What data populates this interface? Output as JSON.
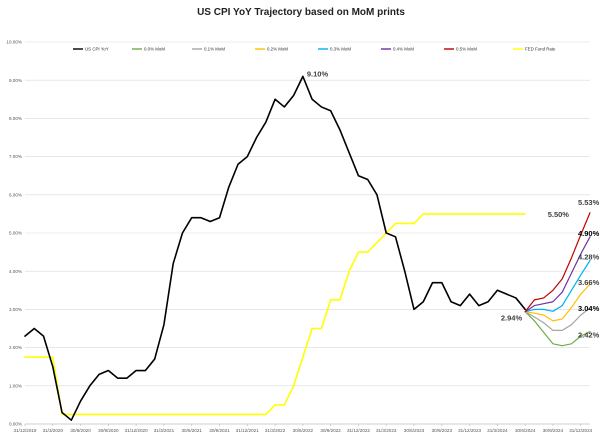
{
  "chart_data": {
    "type": "line",
    "title": "US CPI YoY Trajectory based on MoM prints",
    "ylim": [
      0,
      10
    ],
    "y_ticks": [
      "0.00%",
      "1.00%",
      "2.00%",
      "3.00%",
      "4.00%",
      "5.00%",
      "6.00%",
      "7.00%",
      "8.00%",
      "9.00%",
      "10.00%"
    ],
    "x_labels": [
      "31/12/2019",
      "31/3/2020",
      "30/6/2020",
      "30/9/2020",
      "31/12/2020",
      "31/3/2021",
      "30/6/2021",
      "30/9/2021",
      "31/12/2021",
      "31/3/2022",
      "30/6/2022",
      "30/9/2022",
      "31/12/2022",
      "31/3/2023",
      "30/6/2023",
      "30/9/2023",
      "31/12/2023",
      "31/3/2024",
      "30/6/2024",
      "30/9/2024",
      "31/12/2024"
    ],
    "legend_position": "top",
    "grid": true,
    "series": [
      {
        "name": "US CPI YoY",
        "color": "#000000",
        "width": 1.6,
        "values": [
          2.3,
          2.5,
          2.3,
          1.5,
          0.3,
          0.1,
          0.6,
          1.0,
          1.3,
          1.4,
          1.2,
          1.2,
          1.4,
          1.4,
          1.7,
          2.6,
          4.2,
          5.0,
          5.4,
          5.4,
          5.3,
          5.4,
          6.2,
          6.8,
          7.0,
          7.5,
          7.9,
          8.5,
          8.3,
          8.6,
          9.1,
          8.5,
          8.3,
          8.2,
          7.7,
          7.1,
          6.5,
          6.4,
          6.0,
          5.0,
          4.9,
          4.0,
          3.0,
          3.2,
          3.7,
          3.7,
          3.2,
          3.1,
          3.4,
          3.1,
          3.2,
          3.5,
          3.4,
          3.3,
          3.0
        ]
      },
      {
        "name": "0.0% MoM",
        "color": "#70ad47",
        "width": 1.2,
        "offset": 54,
        "values": [
          2.94,
          2.7,
          2.4,
          2.1,
          2.05,
          2.1,
          2.3,
          2.42
        ]
      },
      {
        "name": "0.1% MoM",
        "color": "#a5a5a5",
        "width": 1.2,
        "offset": 54,
        "values": [
          2.94,
          2.8,
          2.65,
          2.45,
          2.45,
          2.6,
          2.85,
          3.04
        ]
      },
      {
        "name": "0.2% MoM",
        "color": "#ffc000",
        "width": 1.2,
        "offset": 54,
        "values": [
          2.94,
          2.9,
          2.85,
          2.7,
          2.75,
          3.05,
          3.4,
          3.66
        ]
      },
      {
        "name": "0.3% MoM",
        "color": "#00b0f0",
        "width": 1.2,
        "offset": 54,
        "values": [
          2.94,
          3.0,
          3.0,
          2.95,
          3.1,
          3.5,
          3.9,
          4.28
        ]
      },
      {
        "name": "0.4% MoM",
        "color": "#7030a0",
        "width": 1.2,
        "offset": 54,
        "values": [
          2.94,
          3.1,
          3.15,
          3.2,
          3.45,
          3.95,
          4.45,
          4.9
        ]
      },
      {
        "name": "0.5% MoM",
        "color": "#c00000",
        "width": 1.2,
        "offset": 54,
        "values": [
          2.94,
          3.25,
          3.3,
          3.5,
          3.8,
          4.35,
          4.95,
          5.53
        ]
      },
      {
        "name": "FED Fund Rate",
        "color": "#ffff00",
        "width": 1.6,
        "values": [
          1.75,
          1.75,
          1.75,
          1.75,
          0.25,
          0.25,
          0.25,
          0.25,
          0.25,
          0.25,
          0.25,
          0.25,
          0.25,
          0.25,
          0.25,
          0.25,
          0.25,
          0.25,
          0.25,
          0.25,
          0.25,
          0.25,
          0.25,
          0.25,
          0.25,
          0.25,
          0.25,
          0.5,
          0.5,
          1.0,
          1.75,
          2.5,
          2.5,
          3.25,
          3.25,
          4.0,
          4.5,
          4.5,
          4.75,
          5.0,
          5.25,
          5.25,
          5.25,
          5.5,
          5.5,
          5.5,
          5.5,
          5.5,
          5.5,
          5.5,
          5.5,
          5.5,
          5.5,
          5.5,
          5.5
        ]
      }
    ],
    "annotations": [
      {
        "text": "9.10%",
        "x": 30,
        "y": 9.1,
        "color": "#404040"
      },
      {
        "text": "5.50%",
        "x": 56,
        "y": 5.5,
        "color": "#404040"
      },
      {
        "text": "2.94%",
        "x": 54,
        "y": 2.94,
        "color": "#404040"
      },
      {
        "text": "5.53%",
        "x": 61,
        "y": 5.53,
        "color": "#404040"
      },
      {
        "text": "4.90%",
        "x": 61,
        "y": 4.9,
        "color": "#000000"
      },
      {
        "text": "4.28%",
        "x": 61,
        "y": 4.28,
        "color": "#404040"
      },
      {
        "text": "3.66%",
        "x": 61,
        "y": 3.66,
        "color": "#404040"
      },
      {
        "text": "3.04%",
        "x": 61,
        "y": 3.04,
        "color": "#000000"
      },
      {
        "text": "2.42%",
        "x": 61,
        "y": 2.42,
        "color": "#404040"
      }
    ]
  }
}
